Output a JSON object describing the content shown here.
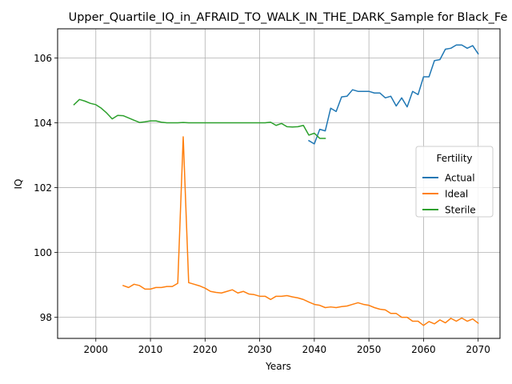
{
  "chart_data": {
    "type": "line",
    "title": "Upper_Quartile_IQ_in_AFRAID_TO_WALK_IN_THE_DARK_Sample for Black_Fe",
    "xlabel": "Years",
    "ylabel": "IQ",
    "xlim": [
      1993,
      2074
    ],
    "ylim": [
      97.35,
      106.9
    ],
    "xticks": [
      2000,
      2010,
      2020,
      2030,
      2040,
      2050,
      2060,
      2070
    ],
    "yticks": [
      98,
      100,
      102,
      104,
      106
    ],
    "grid": true,
    "legend": {
      "title": "Fertility",
      "placement": "center-right"
    },
    "series": [
      {
        "name": "Actual",
        "color": "#1f77b4",
        "x": [
          2039,
          2040,
          2041,
          2042,
          2043,
          2044,
          2045,
          2046,
          2047,
          2048,
          2049,
          2050,
          2051,
          2052,
          2053,
          2054,
          2055,
          2056,
          2057,
          2058,
          2059,
          2060,
          2061,
          2062,
          2063,
          2064,
          2065,
          2066,
          2067,
          2068,
          2069,
          2070
        ],
        "y": [
          103.45,
          103.35,
          103.8,
          103.75,
          104.45,
          104.35,
          104.8,
          104.82,
          105.02,
          104.97,
          104.97,
          104.97,
          104.92,
          104.92,
          104.77,
          104.82,
          104.52,
          104.77,
          104.49,
          104.97,
          104.87,
          105.42,
          105.42,
          105.92,
          105.95,
          106.27,
          106.3,
          106.4,
          106.4,
          106.3,
          106.38,
          106.13
        ]
      },
      {
        "name": "Ideal",
        "color": "#ff7f0e",
        "x": [
          2005,
          2006,
          2007,
          2008,
          2009,
          2010,
          2011,
          2012,
          2013,
          2014,
          2015,
          2016,
          2017,
          2018,
          2019,
          2020,
          2021,
          2022,
          2023,
          2024,
          2025,
          2026,
          2027,
          2028,
          2029,
          2030,
          2031,
          2032,
          2033,
          2034,
          2035,
          2036,
          2037,
          2038,
          2039,
          2040,
          2041,
          2042,
          2043,
          2044,
          2045,
          2046,
          2047,
          2048,
          2049,
          2050,
          2051,
          2052,
          2053,
          2054,
          2055,
          2056,
          2057,
          2058,
          2059,
          2060,
          2061,
          2062,
          2063,
          2064,
          2065,
          2066,
          2067,
          2068,
          2069,
          2070
        ],
        "y": [
          98.98,
          98.92,
          99.02,
          98.98,
          98.87,
          98.87,
          98.92,
          98.92,
          98.95,
          98.95,
          99.05,
          103.57,
          99.07,
          99.02,
          98.97,
          98.9,
          98.8,
          98.77,
          98.75,
          98.8,
          98.85,
          98.75,
          98.8,
          98.72,
          98.7,
          98.65,
          98.65,
          98.55,
          98.65,
          98.65,
          98.67,
          98.63,
          98.6,
          98.55,
          98.47,
          98.4,
          98.37,
          98.3,
          98.32,
          98.3,
          98.33,
          98.35,
          98.4,
          98.45,
          98.4,
          98.37,
          98.3,
          98.25,
          98.23,
          98.12,
          98.12,
          98.0,
          98.0,
          97.88,
          97.88,
          97.75,
          97.87,
          97.8,
          97.92,
          97.83,
          97.97,
          97.88,
          97.98,
          97.88,
          97.95,
          97.82
        ]
      },
      {
        "name": "Sterile",
        "color": "#2ca02c",
        "x": [
          1996,
          1997,
          1998,
          1999,
          2000,
          2001,
          2002,
          2003,
          2004,
          2005,
          2006,
          2007,
          2008,
          2009,
          2010,
          2011,
          2012,
          2013,
          2014,
          2015,
          2016,
          2017,
          2018,
          2019,
          2020,
          2021,
          2022,
          2023,
          2024,
          2025,
          2026,
          2027,
          2028,
          2029,
          2030,
          2031,
          2032,
          2033,
          2034,
          2035,
          2036,
          2037,
          2038,
          2039,
          2040,
          2041,
          2042
        ],
        "y": [
          104.56,
          104.72,
          104.67,
          104.6,
          104.56,
          104.45,
          104.3,
          104.12,
          104.23,
          104.22,
          104.15,
          104.08,
          104.01,
          104.03,
          104.06,
          104.06,
          104.02,
          104.0,
          104.0,
          104.0,
          104.01,
          104.0,
          104.0,
          104.0,
          104.0,
          104.0,
          104.0,
          104.0,
          104.0,
          104.0,
          104.0,
          104.0,
          104.0,
          104.0,
          104.0,
          104.0,
          104.02,
          103.92,
          103.98,
          103.88,
          103.87,
          103.88,
          103.92,
          103.62,
          103.68,
          103.52,
          103.52
        ]
      }
    ]
  }
}
